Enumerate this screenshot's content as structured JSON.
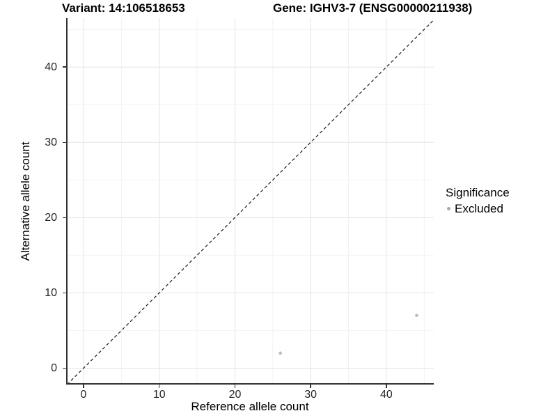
{
  "chart": {
    "title_left": "Variant: 14:106518653",
    "title_right": "Gene: IGHV3-7 (ENSG00000211938)",
    "xlabel": "Reference allele count",
    "ylabel": "Alternative allele count",
    "legend": {
      "title": "Significance",
      "items": [
        {
          "label": "Excluded",
          "color": "#a9a9a9"
        }
      ]
    }
  },
  "chart_data": {
    "type": "scatter",
    "title": "Variant: 14:106518653 — Gene: IGHV3-7 (ENSG00000211938)",
    "xlabel": "Reference allele count",
    "ylabel": "Alternative allele count",
    "series": [
      {
        "name": "Excluded",
        "color": "#bcbcbc",
        "points": [
          {
            "x": 26,
            "y": 2
          },
          {
            "x": 44,
            "y": 7
          }
        ]
      }
    ],
    "reference_line": {
      "type": "identity",
      "slope": 1,
      "intercept": 0,
      "style": "dashed"
    },
    "xlim": [
      -2.3,
      46.26
    ],
    "ylim": [
      -2.18,
      46.5
    ],
    "x_major_ticks": [
      0,
      10,
      20,
      30,
      40
    ],
    "y_major_ticks": [
      0,
      10,
      20,
      30,
      40
    ],
    "x_minor_ticks": [
      5,
      15,
      25,
      35,
      45
    ],
    "y_minor_ticks": [
      5,
      15,
      25,
      35,
      45
    ],
    "grid": "major+minor",
    "legend_position": "right",
    "colors": {
      "grid_major": "#e4e4e4",
      "grid_minor": "#f2f2f2",
      "axis_line": "#333333",
      "identity_line": "#1a1a1a",
      "point": "#bcbcbc"
    }
  }
}
